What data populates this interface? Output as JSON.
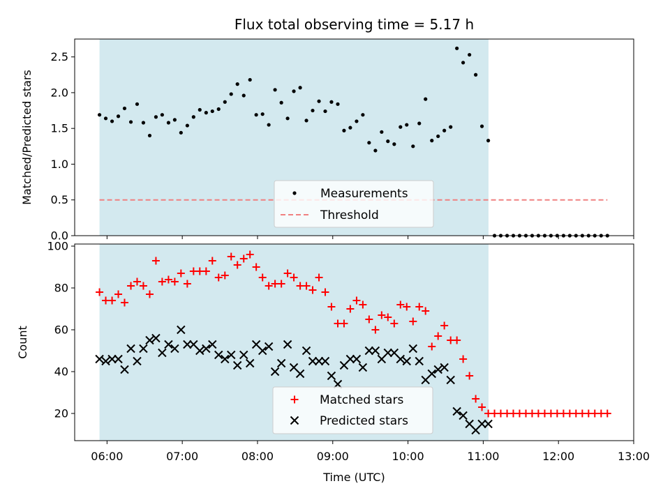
{
  "chart_data": [
    {
      "type": "scatter",
      "title": "Flux total observing time = 5.17 h",
      "xlabel": "",
      "ylabel": "Matched/Predicted stars",
      "xlim": [
        5.57,
        13.0
      ],
      "ylim": [
        0,
        2.75
      ],
      "yticks": [
        0,
        0.5,
        1.0,
        1.5,
        2.0,
        2.5
      ],
      "ytick_labels": [
        "0.0",
        "0.5",
        "1.0",
        "1.5",
        "2.0",
        "2.5"
      ],
      "observing_window": [
        5.9,
        11.07
      ],
      "colors": {
        "span": "#d3e9ef",
        "points": "#000000",
        "threshold": "#f08080"
      },
      "legend": {
        "location": "lower-center",
        "entries": [
          "Measurements",
          "Threshold"
        ]
      },
      "threshold": {
        "name": "Threshold",
        "value": 0.5,
        "x_range": [
          5.9,
          12.65
        ]
      },
      "series": [
        {
          "name": "Measurements",
          "x": [
            5.9,
            5.983,
            6.067,
            6.15,
            6.233,
            6.317,
            6.4,
            6.483,
            6.567,
            6.65,
            6.733,
            6.817,
            6.9,
            6.983,
            7.067,
            7.15,
            7.233,
            7.317,
            7.4,
            7.483,
            7.567,
            7.65,
            7.733,
            7.817,
            7.9,
            7.983,
            8.067,
            8.15,
            8.233,
            8.317,
            8.4,
            8.483,
            8.567,
            8.65,
            8.733,
            8.817,
            8.9,
            8.983,
            9.067,
            9.15,
            9.233,
            9.317,
            9.4,
            9.483,
            9.567,
            9.65,
            9.733,
            9.817,
            9.9,
            9.983,
            10.067,
            10.15,
            10.233,
            10.317,
            10.4,
            10.483,
            10.567,
            10.65,
            10.733,
            10.817,
            10.9,
            10.983,
            11.067,
            11.15,
            11.233,
            11.317,
            11.4,
            11.483,
            11.567,
            11.65,
            11.733,
            11.817,
            11.9,
            11.983,
            12.067,
            12.15,
            12.233,
            12.317,
            12.4,
            12.483,
            12.567,
            12.65
          ],
          "y": [
            1.69,
            1.64,
            1.6,
            1.67,
            1.78,
            1.59,
            1.84,
            1.58,
            1.4,
            1.66,
            1.69,
            1.58,
            1.62,
            1.44,
            1.54,
            1.66,
            1.76,
            1.72,
            1.74,
            1.77,
            1.87,
            1.98,
            2.12,
            1.96,
            2.18,
            1.69,
            1.7,
            1.55,
            2.04,
            1.86,
            1.64,
            2.02,
            2.07,
            1.61,
            1.75,
            1.88,
            1.74,
            1.87,
            1.84,
            1.47,
            1.51,
            1.6,
            1.69,
            1.3,
            1.19,
            1.45,
            1.32,
            1.28,
            1.52,
            1.55,
            1.25,
            1.57,
            1.91,
            1.33,
            1.39,
            1.47,
            1.52,
            2.62,
            2.42,
            2.53,
            2.25,
            1.53,
            1.33,
            0,
            0,
            0,
            0,
            0,
            0,
            0,
            0,
            0,
            0,
            0,
            0,
            0,
            0,
            0,
            0,
            0,
            0,
            0
          ]
        }
      ]
    },
    {
      "type": "scatter",
      "title": "",
      "xlabel": "Time (UTC)",
      "ylabel": "Count",
      "xlim": [
        5.57,
        13.0
      ],
      "ylim": [
        7,
        101
      ],
      "yticks": [
        20,
        40,
        60,
        80,
        100
      ],
      "ytick_labels": [
        "20",
        "40",
        "60",
        "80",
        "100"
      ],
      "xticks": [
        6,
        7,
        8,
        9,
        10,
        11,
        12,
        13
      ],
      "xtick_labels": [
        "06:00",
        "07:00",
        "08:00",
        "09:00",
        "10:00",
        "11:00",
        "12:00",
        "13:00"
      ],
      "observing_window": [
        5.9,
        11.07
      ],
      "colors": {
        "span": "#d3e9ef",
        "matched": "#ff0000",
        "predicted": "#000000"
      },
      "legend": {
        "location": "lower-center",
        "entries": [
          "Matched stars",
          "Predicted stars"
        ]
      },
      "series": [
        {
          "name": "Matched stars",
          "marker": "plus",
          "x": [
            5.9,
            5.983,
            6.067,
            6.15,
            6.233,
            6.317,
            6.4,
            6.483,
            6.567,
            6.65,
            6.733,
            6.817,
            6.9,
            6.983,
            7.067,
            7.15,
            7.233,
            7.317,
            7.4,
            7.483,
            7.567,
            7.65,
            7.733,
            7.817,
            7.9,
            7.983,
            8.067,
            8.15,
            8.233,
            8.317,
            8.4,
            8.483,
            8.567,
            8.65,
            8.733,
            8.817,
            8.9,
            8.983,
            9.067,
            9.15,
            9.233,
            9.317,
            9.4,
            9.483,
            9.567,
            9.65,
            9.733,
            9.817,
            9.9,
            9.983,
            10.067,
            10.15,
            10.233,
            10.317,
            10.4,
            10.483,
            10.567,
            10.65,
            10.733,
            10.817,
            10.9,
            10.983,
            11.067,
            11.15,
            11.233,
            11.317,
            11.4,
            11.483,
            11.567,
            11.65,
            11.733,
            11.817,
            11.9,
            11.983,
            12.067,
            12.15,
            12.233,
            12.317,
            12.4,
            12.483,
            12.567,
            12.65
          ],
          "y": [
            78,
            74,
            74,
            77,
            73,
            81,
            83,
            81,
            77,
            93,
            83,
            84,
            83,
            87,
            82,
            88,
            88,
            88,
            93,
            85,
            86,
            95,
            91,
            94,
            96,
            90,
            85,
            81,
            82,
            82,
            87,
            85,
            81,
            81,
            79,
            85,
            78,
            71,
            63,
            63,
            70,
            74,
            72,
            65,
            60,
            67,
            66,
            63,
            72,
            71,
            64,
            71,
            69,
            52,
            57,
            62,
            55,
            55,
            46,
            38,
            27,
            23,
            20,
            20,
            20,
            20,
            20,
            20,
            20,
            20,
            20,
            20,
            20,
            20,
            20,
            20,
            20,
            20,
            20,
            20,
            20,
            20
          ]
        },
        {
          "name": "Predicted stars",
          "marker": "x",
          "x": [
            5.9,
            5.983,
            6.067,
            6.15,
            6.233,
            6.317,
            6.4,
            6.483,
            6.567,
            6.65,
            6.733,
            6.817,
            6.9,
            6.983,
            7.067,
            7.15,
            7.233,
            7.317,
            7.4,
            7.483,
            7.567,
            7.65,
            7.733,
            7.817,
            7.9,
            7.983,
            8.067,
            8.15,
            8.233,
            8.317,
            8.4,
            8.483,
            8.567,
            8.65,
            8.733,
            8.817,
            8.9,
            8.983,
            9.067,
            9.15,
            9.233,
            9.317,
            9.4,
            9.483,
            9.567,
            9.65,
            9.733,
            9.817,
            9.9,
            9.983,
            10.067,
            10.15,
            10.233,
            10.317,
            10.4,
            10.483,
            10.567,
            10.65,
            10.733,
            10.817,
            10.9,
            10.983,
            11.067
          ],
          "y": [
            46,
            45,
            46,
            46,
            41,
            51,
            45,
            51,
            55,
            56,
            49,
            53,
            51,
            60,
            53,
            53,
            50,
            51,
            53,
            48,
            46,
            48,
            43,
            48,
            44,
            53,
            50,
            52,
            40,
            44,
            53,
            42,
            39,
            50,
            45,
            45,
            45,
            38,
            34,
            43,
            46,
            46,
            42,
            50,
            50,
            46,
            49,
            49,
            46,
            45,
            51,
            45,
            36,
            39,
            41,
            42,
            36,
            21,
            19,
            15,
            12,
            15,
            15
          ]
        }
      ]
    }
  ]
}
